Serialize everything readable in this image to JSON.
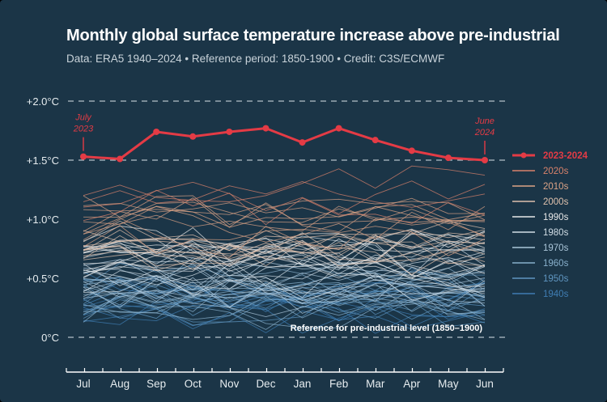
{
  "chart_data": {
    "type": "line",
    "title": "Monthly global surface temperature increase above pre-industrial",
    "subtitle": "Data: ERA5 1940–2024  •  Reference period: 1850-1900  •  Credit: C3S/ECMWF",
    "categories": [
      "Jul",
      "Aug",
      "Sep",
      "Oct",
      "Nov",
      "Dec",
      "Jan",
      "Feb",
      "Mar",
      "Apr",
      "May",
      "Jun"
    ],
    "y_ticks": [
      {
        "value": 2.0,
        "label": "+2.0°C"
      },
      {
        "value": 1.5,
        "label": "+1.5°C"
      },
      {
        "value": 1.0,
        "label": "+1.0°C"
      },
      {
        "value": 0.5,
        "label": "+0.5°C"
      },
      {
        "value": 0.0,
        "label": "0°C"
      }
    ],
    "ylim": [
      -0.25,
      2.1
    ],
    "dashed_reference_lines": [
      0.0,
      1.5,
      2.0
    ],
    "highlight_series": {
      "name": "2023-2024",
      "color": "#e43b45",
      "values": [
        1.53,
        1.51,
        1.74,
        1.7,
        1.74,
        1.77,
        1.65,
        1.77,
        1.67,
        1.58,
        1.52,
        1.5
      ]
    },
    "decades": [
      {
        "name": "2020s",
        "color": "#d9826b",
        "base": 1.22
      },
      {
        "name": "2010s",
        "color": "#dca386",
        "base": 0.98
      },
      {
        "name": "2000s",
        "color": "#e0c2ad",
        "base": 0.82
      },
      {
        "name": "1990s",
        "color": "#e8e8e8",
        "base": 0.68
      },
      {
        "name": "1980s",
        "color": "#d2dee6",
        "base": 0.56
      },
      {
        "name": "1970s",
        "color": "#abc6d9",
        "base": 0.42
      },
      {
        "name": "1960s",
        "color": "#88b0cc",
        "base": 0.36
      },
      {
        "name": "1950s",
        "color": "#5f95c0",
        "base": 0.33
      },
      {
        "name": "1940s",
        "color": "#3f7db3",
        "base": 0.28
      }
    ],
    "annotations": [
      {
        "text": [
          "July",
          "2023"
        ],
        "month": "Jul",
        "value": 1.53
      },
      {
        "text": [
          "June",
          "2024"
        ],
        "month": "Jun",
        "value": 1.5
      }
    ],
    "reference_note": "Reference for pre-industrial level (1850–1900)"
  }
}
